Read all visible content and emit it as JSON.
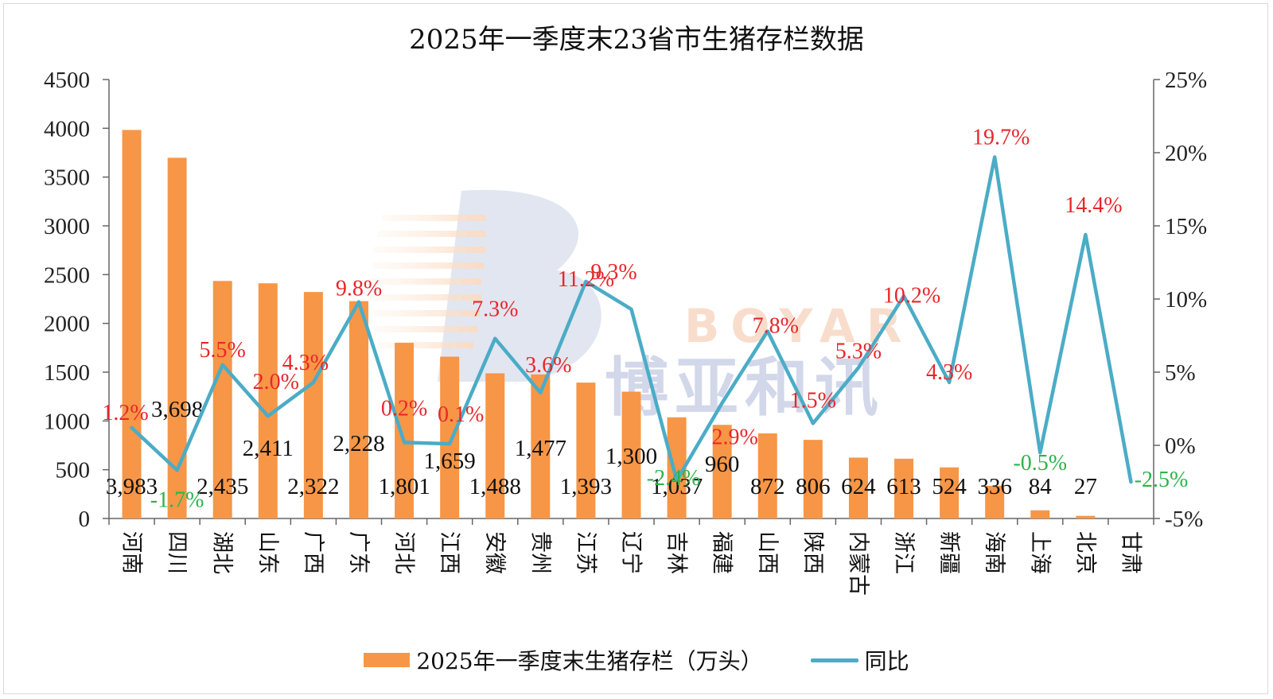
{
  "title": "2025年一季度末23省市生猪存栏数据",
  "colors": {
    "bar": "#f79646",
    "line": "#4bacc6",
    "positive": "#e8262a",
    "negative": "#2db34a"
  },
  "watermark": {
    "name": "BOYAR",
    "cn": "博亚和讯"
  },
  "legend": {
    "bar_label": "2025年一季度末生猪存栏（万头）",
    "line_label": "同比"
  },
  "chart_data": {
    "type": "bar",
    "categories": [
      "河南",
      "四川",
      "湖北",
      "山东",
      "广西",
      "广东",
      "河北",
      "江西",
      "安徽",
      "贵州",
      "江苏",
      "辽宁",
      "吉林",
      "福建",
      "山西",
      "陕西",
      "内蒙古",
      "浙江",
      "新疆",
      "海南",
      "上海",
      "北京",
      "甘肃"
    ],
    "series": [
      {
        "name": "2025年一季度末生猪存栏（万头）",
        "type": "bar",
        "axis": "left",
        "values": [
          3983,
          3698,
          2435,
          2411,
          2322,
          2228,
          1801,
          1659,
          1488,
          1477,
          1393,
          1300,
          1037,
          960,
          872,
          806,
          624,
          613,
          524,
          336,
          84,
          27,
          0
        ],
        "labels": [
          "3,983",
          "3,698",
          "2,435",
          "2,411",
          "2,322",
          "2,228",
          "1,801",
          "1,659",
          "1,488",
          "1,477",
          "1,393",
          "1,300",
          "1,037",
          "960",
          "872",
          "806",
          "624",
          "613",
          "524",
          "336",
          "84",
          "27",
          ""
        ]
      },
      {
        "name": "同比",
        "type": "line",
        "axis": "right",
        "values": [
          1.2,
          -1.7,
          5.5,
          2.0,
          4.3,
          9.8,
          0.2,
          0.1,
          7.3,
          3.6,
          11.2,
          9.3,
          -2.4,
          2.9,
          7.8,
          1.5,
          5.3,
          10.2,
          4.3,
          19.7,
          -0.5,
          14.4,
          -2.5
        ],
        "labels": [
          "1.2%",
          "-1.7%",
          "5.5%",
          "2.0%",
          "4.3%",
          "9.8%",
          "0.2%",
          "0.1%",
          "7.3%",
          "3.6%",
          "11.2%",
          "9.3%",
          "-2.4%",
          "2.9%",
          "7.8%",
          "1.5%",
          "5.3%",
          "10.2%",
          "4.3%",
          "19.7%",
          "-0.5%",
          "14.4%",
          "-2.5%"
        ]
      }
    ],
    "y_left": {
      "min": 0,
      "max": 4500,
      "step": 500,
      "ticks": [
        "0",
        "500",
        "1000",
        "1500",
        "2000",
        "2500",
        "3000",
        "3500",
        "4000",
        "4500"
      ]
    },
    "y_right": {
      "min": -5,
      "max": 25,
      "step": 5,
      "ticks": [
        "-5%",
        "0%",
        "5%",
        "10%",
        "15%",
        "20%",
        "25%"
      ]
    },
    "grid": false,
    "legend_position": "bottom"
  }
}
